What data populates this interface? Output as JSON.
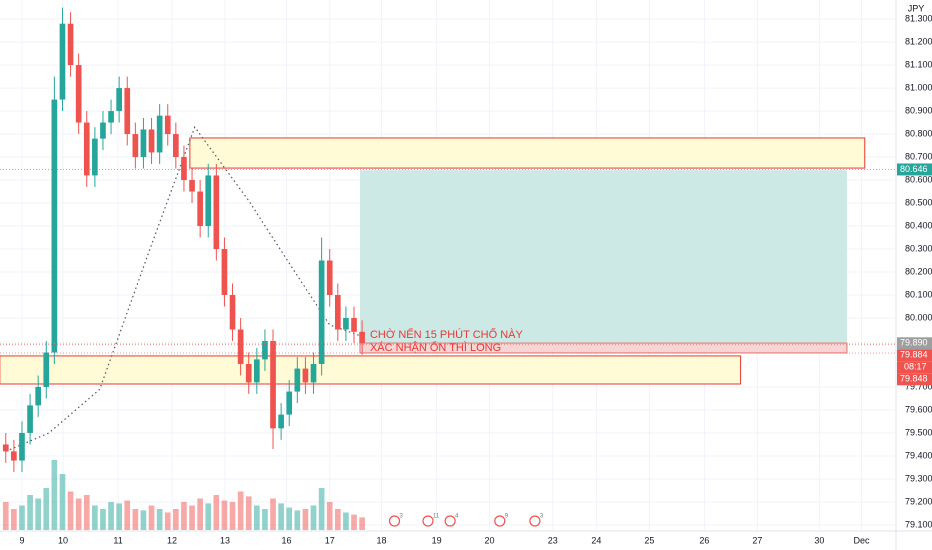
{
  "chart_data": {
    "type": "candlestick",
    "currency": "JPY",
    "xlim": [
      -0.407,
      16.17
    ],
    "ylim": [
      79.078,
      81.383
    ],
    "xticks": [
      {
        "value": 0,
        "label": "9"
      },
      {
        "value": 0.76,
        "label": "10"
      },
      {
        "value": 1.78,
        "label": "11"
      },
      {
        "value": 2.78,
        "label": "12"
      },
      {
        "value": 3.76,
        "label": "13"
      },
      {
        "value": 4.9,
        "label": "16"
      },
      {
        "value": 5.7,
        "label": "17"
      },
      {
        "value": 6.66,
        "label": "18"
      },
      {
        "value": 7.68,
        "label": "19"
      },
      {
        "value": 8.66,
        "label": "20"
      },
      {
        "value": 9.83,
        "label": "23"
      },
      {
        "value": 10.64,
        "label": "24"
      },
      {
        "value": 11.62,
        "label": "25"
      },
      {
        "value": 12.64,
        "label": "26"
      },
      {
        "value": 13.62,
        "label": "27"
      },
      {
        "value": 14.77,
        "label": "30"
      },
      {
        "value": 15.55,
        "label": "Dec"
      }
    ],
    "yticks": [
      {
        "value": 81.3,
        "label": "81.300"
      },
      {
        "value": 81.2,
        "label": "81.200"
      },
      {
        "value": 81.1,
        "label": "81.100"
      },
      {
        "value": 81.0,
        "label": "81.000"
      },
      {
        "value": 80.9,
        "label": "80.900"
      },
      {
        "value": 80.8,
        "label": "80.800"
      },
      {
        "value": 80.7,
        "label": "80.700"
      },
      {
        "value": 80.6,
        "label": "80.600"
      },
      {
        "value": 80.5,
        "label": "80.500"
      },
      {
        "value": 80.4,
        "label": "80.400"
      },
      {
        "value": 80.3,
        "label": "80.300"
      },
      {
        "value": 80.2,
        "label": "80.200"
      },
      {
        "value": 80.1,
        "label": "80.100"
      },
      {
        "value": 80.0,
        "label": "80.000"
      },
      {
        "value": 79.7,
        "label": "79.700"
      },
      {
        "value": 79.6,
        "label": "79.600"
      },
      {
        "value": 79.5,
        "label": "79.500"
      },
      {
        "value": 79.4,
        "label": "79.400"
      },
      {
        "value": 79.3,
        "label": "79.300"
      },
      {
        "value": 79.2,
        "label": "79.200"
      },
      {
        "value": 79.1,
        "label": "79.100"
      }
    ],
    "grid": true,
    "up_color": "#26a69a",
    "down_color": "#ef5350",
    "x": [
      -0.3,
      -0.15,
      0,
      0.15,
      0.3,
      0.45,
      0.6,
      0.75,
      0.9,
      1.05,
      1.2,
      1.35,
      1.5,
      1.65,
      1.8,
      1.95,
      2.1,
      2.25,
      2.4,
      2.55,
      2.7,
      2.85,
      3,
      3.15,
      3.3,
      3.45,
      3.6,
      3.75,
      3.9,
      4.05,
      4.2,
      4.35,
      4.5,
      4.65,
      4.8,
      4.95,
      5.1,
      5.25,
      5.4,
      5.55,
      5.7,
      5.85,
      6,
      6.15,
      6.3
    ],
    "open": [
      79.45,
      79.42,
      79.38,
      79.5,
      79.62,
      79.7,
      79.85,
      80.95,
      81.28,
      81.1,
      80.85,
      80.62,
      80.78,
      80.85,
      80.9,
      81.0,
      80.8,
      80.7,
      80.82,
      80.72,
      80.88,
      80.8,
      80.7,
      80.6,
      80.55,
      80.4,
      80.62,
      80.3,
      80.1,
      79.95,
      79.8,
      79.72,
      79.82,
      79.9,
      79.52,
      79.58,
      79.68,
      79.78,
      79.72,
      79.8,
      80.25,
      80.1,
      79.95,
      80.0,
      79.94
    ],
    "high": [
      79.5,
      79.47,
      79.55,
      79.67,
      79.75,
      79.9,
      81.05,
      81.35,
      81.33,
      81.15,
      80.9,
      80.83,
      80.9,
      80.95,
      81.05,
      81.05,
      80.85,
      80.87,
      80.87,
      80.93,
      80.93,
      80.85,
      80.75,
      80.65,
      80.6,
      80.67,
      80.67,
      80.35,
      80.15,
      80.0,
      79.85,
      79.87,
      79.95,
      79.95,
      79.63,
      79.73,
      79.83,
      79.83,
      79.85,
      80.35,
      80.3,
      80.15,
      80.05,
      80.05,
      79.99
    ],
    "low": [
      79.37,
      79.33,
      79.33,
      79.45,
      79.57,
      79.65,
      79.8,
      80.9,
      81.05,
      80.8,
      80.57,
      80.57,
      80.73,
      80.8,
      80.85,
      80.75,
      80.65,
      80.65,
      80.67,
      80.67,
      80.75,
      80.65,
      80.55,
      80.5,
      80.35,
      80.35,
      80.25,
      80.05,
      79.9,
      79.75,
      79.67,
      79.67,
      79.77,
      79.43,
      79.47,
      79.53,
      79.63,
      79.67,
      79.67,
      79.75,
      80.05,
      79.9,
      79.9,
      79.89,
      79.84
    ],
    "close": [
      79.42,
      79.38,
      79.5,
      79.62,
      79.7,
      79.85,
      80.95,
      81.28,
      81.1,
      80.85,
      80.62,
      80.78,
      80.85,
      80.9,
      81.0,
      80.8,
      80.7,
      80.82,
      80.72,
      80.88,
      80.8,
      80.7,
      80.6,
      80.55,
      80.4,
      80.62,
      80.3,
      80.1,
      79.95,
      79.8,
      79.72,
      79.82,
      79.9,
      79.52,
      79.58,
      79.68,
      79.78,
      79.72,
      79.8,
      80.25,
      80.1,
      79.95,
      80.0,
      79.94,
      79.89
    ],
    "volume": [
      40,
      30,
      35,
      50,
      45,
      60,
      100,
      80,
      55,
      45,
      50,
      35,
      30,
      40,
      38,
      42,
      30,
      28,
      35,
      30,
      25,
      30,
      40,
      35,
      45,
      38,
      50,
      42,
      40,
      55,
      48,
      35,
      30,
      45,
      38,
      32,
      28,
      30,
      35,
      60,
      40,
      30,
      25,
      22,
      18
    ],
    "ma": {
      "color": "#555555",
      "x": [
        -0.3,
        0.5,
        1.44,
        2.37,
        3.2,
        4.2,
        5.0,
        5.7,
        6.3
      ],
      "values": [
        79.42,
        79.5,
        79.69,
        80.3,
        80.83,
        80.51,
        80.22,
        79.97,
        79.92
      ]
    },
    "zones": [
      {
        "x": [
          3.11,
          15.61
        ],
        "y": [
          80.652,
          80.783
        ],
        "fill": "#fffbd6",
        "stroke": "#e53935"
      },
      {
        "x": [
          -0.41,
          13.31
        ],
        "y": [
          79.713,
          79.835
        ],
        "fill": "#fffbd6",
        "stroke": "#e53935"
      },
      {
        "x": [
          6.26,
          15.28
        ],
        "y": [
          79.891,
          80.643
        ],
        "fill": "#cde9e6",
        "stroke": "none"
      },
      {
        "x": [
          6.26,
          15.28
        ],
        "y": [
          79.848,
          79.891
        ],
        "fill": "#f7d5d4",
        "stroke": "#e57373"
      }
    ],
    "annotations": [
      "CHỜ NẾN 15 PHÚT CHỐ NÀY",
      "XÁC NHẬN ỔN THÌ LONG"
    ],
    "price_labels": [
      {
        "value": 80.646,
        "label": "80.646",
        "color": "#26a69a"
      },
      {
        "value": 79.89,
        "label": "79.890",
        "color": "#9e9e9e"
      },
      {
        "value": 79.884,
        "label": "79.884",
        "color": "#ef5350"
      },
      {
        "value": 79.848,
        "label": "79.848",
        "color": "#ef5350"
      }
    ],
    "countdown": "08:17",
    "events": [
      {
        "x": 6.9,
        "label": "3"
      },
      {
        "x": 7.52,
        "label": "11"
      },
      {
        "x": 7.93,
        "label": "4"
      },
      {
        "x": 8.85,
        "label": "9"
      },
      {
        "x": 9.5,
        "label": "3"
      }
    ]
  }
}
